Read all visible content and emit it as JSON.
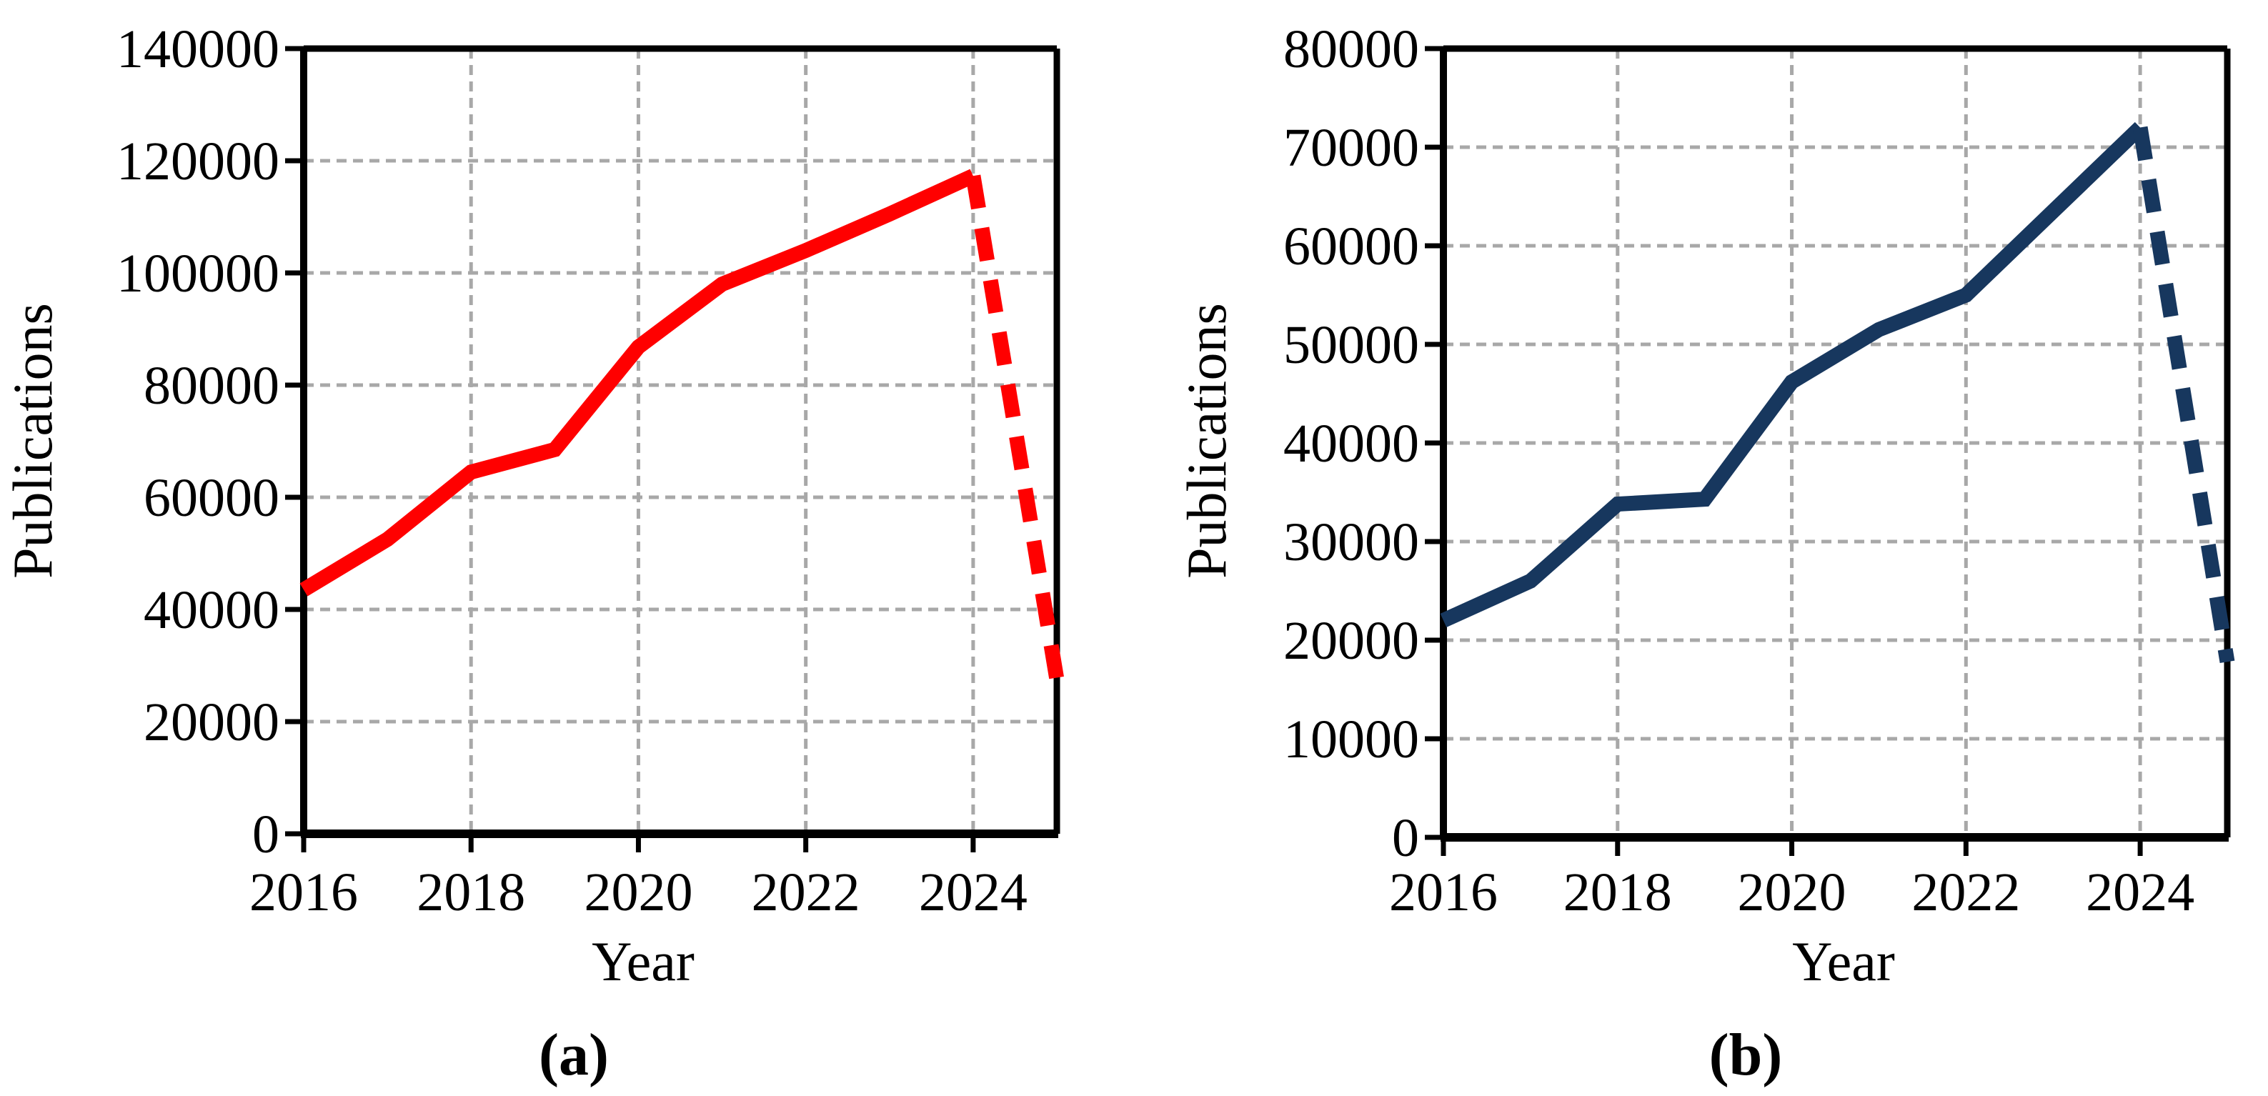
{
  "figure": {
    "background": "#ffffff",
    "grid_color": "#A8A8A8",
    "axis_color": "#000000"
  },
  "chart_data": [
    {
      "id": "a",
      "type": "line",
      "caption": "(a)",
      "xlabel": "Year",
      "ylabel": "Publications",
      "line_color": "#FF0000",
      "x": [
        2016,
        2017,
        2018,
        2019,
        2020,
        2021,
        2022,
        2023,
        2024
      ],
      "y": [
        43500,
        52500,
        64500,
        68500,
        86800,
        98000,
        104000,
        110500,
        117300
      ],
      "projection": {
        "x": [
          2024,
          2025
        ],
        "y": [
          117300,
          27500
        ],
        "style": "dashed"
      },
      "xlim": [
        2016,
        2025
      ],
      "ylim": [
        0,
        140000
      ],
      "x_ticks": [
        2016,
        2018,
        2020,
        2022,
        2024
      ],
      "y_ticks": [
        0,
        20000,
        40000,
        60000,
        80000,
        100000,
        120000,
        140000
      ],
      "grid": true,
      "legend": "none"
    },
    {
      "id": "b",
      "type": "line",
      "caption": "(b)",
      "xlabel": "Year",
      "ylabel": "Publications",
      "line_color": "#17375E",
      "x": [
        2016,
        2017,
        2018,
        2019,
        2020,
        2021,
        2022,
        2023,
        2024
      ],
      "y": [
        22000,
        26000,
        33800,
        34300,
        46200,
        51500,
        55000,
        63500,
        72000
      ],
      "projection": {
        "x": [
          2024,
          2025
        ],
        "y": [
          72000,
          17800
        ],
        "style": "dashed"
      },
      "xlim": [
        2016,
        2025
      ],
      "ylim": [
        0,
        80000
      ],
      "x_ticks": [
        2016,
        2018,
        2020,
        2022,
        2024
      ],
      "y_ticks": [
        0,
        10000,
        20000,
        30000,
        40000,
        50000,
        60000,
        70000,
        80000
      ],
      "grid": true,
      "legend": "none"
    }
  ]
}
